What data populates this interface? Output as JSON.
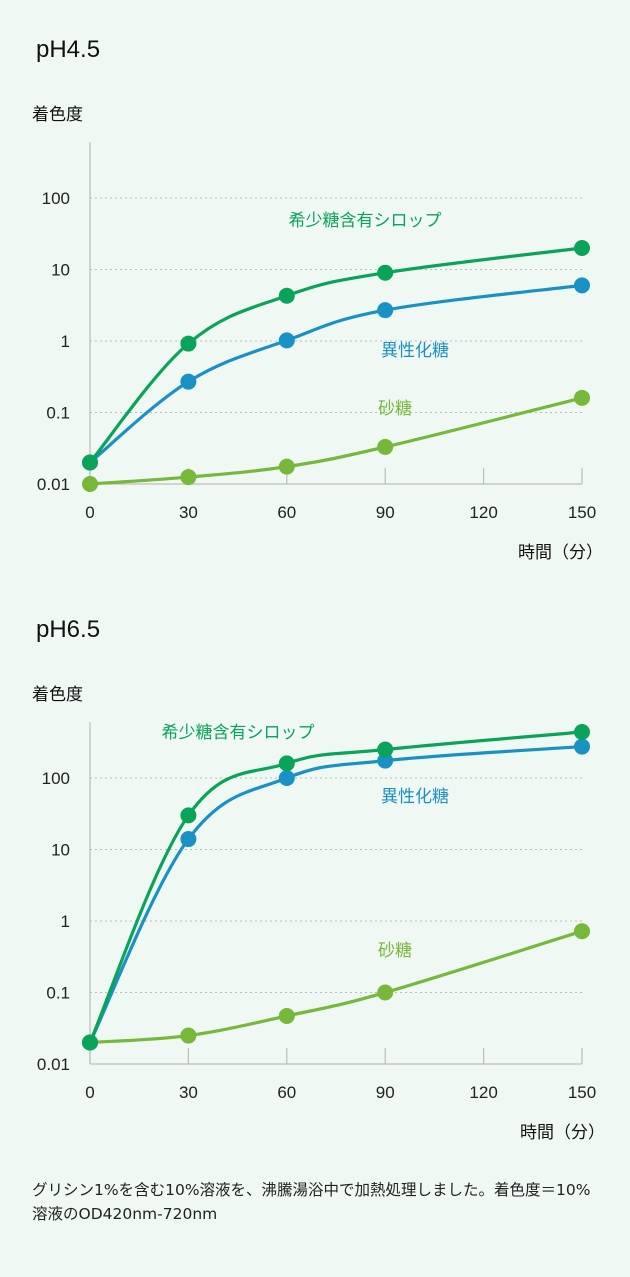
{
  "chart_data": [
    {
      "type": "line",
      "title": "pH4.5",
      "ylabel": "着色度",
      "xlabel": "時間（分）",
      "yscale": "log",
      "ylim": [
        0.01,
        1000
      ],
      "xlim": [
        0,
        150
      ],
      "yticks": [
        "0.01",
        "0.1",
        "1",
        "10",
        "100"
      ],
      "xticks": [
        "0",
        "30",
        "60",
        "90",
        "120",
        "150"
      ],
      "grid": "horizontal-dotted",
      "x": [
        0,
        30,
        60,
        90,
        150
      ],
      "series": [
        {
          "name": "希少糖含有シロップ",
          "color": "#0aa35a",
          "values": [
            0.02,
            0.92,
            4.3,
            9,
            20
          ]
        },
        {
          "name": "異性化糖",
          "color": "#1a91c4",
          "values": [
            0.02,
            0.27,
            1.02,
            2.7,
            6
          ]
        },
        {
          "name": "砂糖",
          "color": "#76b83a",
          "values": [
            0.01,
            0.0125,
            0.0175,
            0.033,
            0.16
          ]
        }
      ]
    },
    {
      "type": "line",
      "title": "pH6.5",
      "ylabel": "着色度",
      "xlabel": "時間（分）",
      "yscale": "log",
      "ylim": [
        0.01,
        1000
      ],
      "xlim": [
        0,
        150
      ],
      "yticks": [
        "0.01",
        "0.1",
        "1",
        "10",
        "100"
      ],
      "xticks": [
        "0",
        "30",
        "60",
        "90",
        "120",
        "150"
      ],
      "grid": "horizontal-dotted",
      "x": [
        0,
        30,
        60,
        90,
        150
      ],
      "series": [
        {
          "name": "希少糖含有シロップ",
          "color": "#0aa35a",
          "values": [
            0.02,
            30,
            160,
            250,
            440
          ]
        },
        {
          "name": "異性化糖",
          "color": "#1a91c4",
          "values": [
            0.02,
            14,
            100,
            175,
            275
          ]
        },
        {
          "name": "砂糖",
          "color": "#76b83a",
          "values": [
            0.02,
            0.025,
            0.047,
            0.1,
            0.72
          ]
        }
      ]
    }
  ],
  "note": "グリシン1%を含む10%溶液を、沸騰湯浴中で加熱処理しました。着色度＝10%溶液のOD420nm-720nm"
}
